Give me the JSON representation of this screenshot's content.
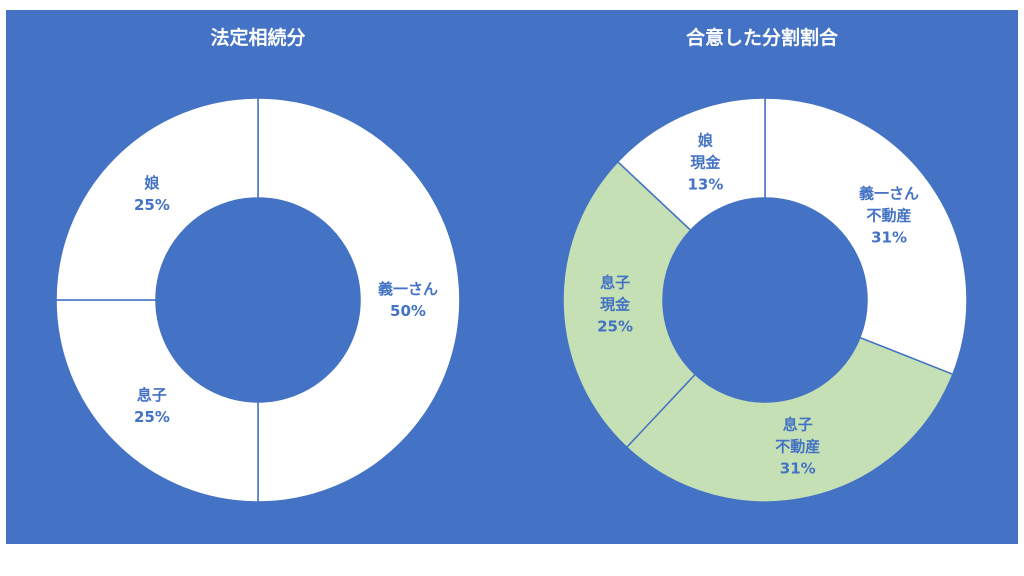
{
  "chart_data": [
    {
      "type": "pie",
      "title": "法定相続分",
      "slices": [
        {
          "label": "義一さん",
          "value": 50,
          "display": "50%",
          "color": "#FFFFFF"
        },
        {
          "label": "息子",
          "value": 25,
          "display": "25%",
          "color": "#FFFFFF"
        },
        {
          "label": "娘",
          "value": 25,
          "display": "25%",
          "color": "#FFFFFF"
        }
      ]
    },
    {
      "type": "pie",
      "title": "合意した分割割合",
      "slices": [
        {
          "label": "義一さん 不動産",
          "value": 31,
          "display": "31%",
          "color": "#FFFFFF"
        },
        {
          "label": "息子 不動産",
          "value": 31,
          "display": "31%",
          "color": "#C5E0B4"
        },
        {
          "label": "息子 現金",
          "value": 25,
          "display": "25%",
          "color": "#C5E0B4"
        },
        {
          "label": "娘 現金",
          "value": 13,
          "display": "13%",
          "color": "#FFFFFF"
        }
      ]
    }
  ],
  "colors": {
    "background": "#4472C4",
    "label_text": "#4472C4",
    "separator": "#4472C4"
  }
}
